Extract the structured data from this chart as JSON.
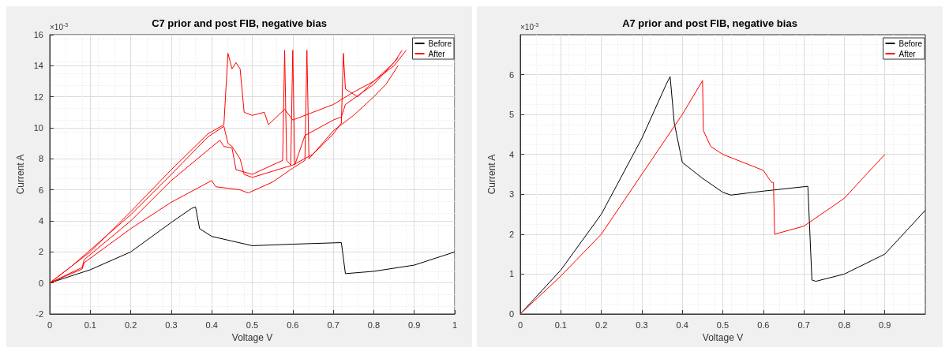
{
  "chart_data": [
    {
      "type": "line",
      "title": "C7 prior and post FIB, negative bias",
      "xlabel": "Voltage V",
      "ylabel": "Current A",
      "annotations": [
        "×10$^{-3}$"
      ],
      "xlim": [
        0,
        1
      ],
      "xticks": [
        0,
        0.1,
        0.2,
        0.3,
        0.4,
        0.5,
        0.6,
        0.7,
        0.8,
        0.9,
        1
      ],
      "ylim": [
        -2,
        16
      ],
      "yticks": [
        -2,
        0,
        2,
        4,
        6,
        8,
        10,
        12,
        14,
        16
      ],
      "grid": true,
      "legend": "top right",
      "series": [
        {
          "name": "Before",
          "color": "#000000",
          "x": [
            0,
            0.1,
            0.2,
            0.3,
            0.35,
            0.36,
            0.37,
            0.4,
            0.45,
            0.5,
            0.6,
            0.72,
            0.73,
            0.8,
            0.9,
            1
          ],
          "values": [
            0,
            0.85,
            2.0,
            3.9,
            4.8,
            4.9,
            3.5,
            3.0,
            2.7,
            2.4,
            2.5,
            2.6,
            0.6,
            0.75,
            1.15,
            2.0
          ]
        },
        {
          "name": "After",
          "color": "#ff0000",
          "x": [
            0,
            0.055,
            0.1,
            0.2,
            0.3,
            0.39,
            0.43,
            0.44,
            0.45,
            0.46,
            0.47,
            0.48,
            0.5,
            0.53,
            0.54,
            0.58,
            0.6,
            0.65,
            0.7,
            0.75,
            0.8,
            0.85,
            0.88
          ],
          "values": [
            0,
            1.1,
            2.0,
            4.6,
            7.3,
            9.6,
            10.2,
            14.8,
            13.8,
            14.2,
            13.8,
            11.0,
            10.8,
            11.0,
            10.2,
            11.2,
            10.5,
            11.0,
            11.5,
            12.3,
            13.0,
            14.0,
            15.0
          ]
        },
        {
          "color": "#ff0000",
          "x": [
            0,
            0.055,
            0.2,
            0.3,
            0.39,
            0.43,
            0.44,
            0.45,
            0.47,
            0.48,
            0.5,
            0.55,
            0.6,
            0.65,
            0.7,
            0.72,
            0.725,
            0.73,
            0.76,
            0.8,
            0.85,
            0.87
          ],
          "values": [
            0,
            1.1,
            4.4,
            7.0,
            9.4,
            10.1,
            9.0,
            8.8,
            8.0,
            7.0,
            6.8,
            7.2,
            7.6,
            8.3,
            9.6,
            10.3,
            14.8,
            12.5,
            12.0,
            13.0,
            14.2,
            15.0
          ]
        },
        {
          "color": "#ff0000",
          "x": [
            0,
            0.08,
            0.085,
            0.2,
            0.3,
            0.42,
            0.43,
            0.45,
            0.46,
            0.5,
            0.575,
            0.58,
            0.585,
            0.595,
            0.6,
            0.605,
            0.63,
            0.7,
            0.72,
            0.73,
            0.8,
            0.86
          ],
          "values": [
            0,
            1.0,
            1.5,
            4.0,
            6.6,
            9.2,
            8.8,
            8.7,
            7.3,
            7.0,
            7.9,
            15.0,
            7.9,
            7.6,
            15.0,
            7.6,
            9.5,
            10.5,
            10.7,
            11.5,
            12.8,
            14.5
          ]
        },
        {
          "color": "#ff0000",
          "x": [
            0,
            0.08,
            0.085,
            0.2,
            0.3,
            0.4,
            0.41,
            0.47,
            0.49,
            0.55,
            0.6,
            0.63,
            0.635,
            0.64,
            0.65,
            0.7,
            0.75,
            0.8,
            0.83,
            0.86
          ],
          "values": [
            0,
            0.9,
            1.3,
            3.5,
            5.2,
            6.6,
            6.2,
            6.0,
            5.8,
            6.5,
            7.4,
            7.9,
            15.0,
            8.0,
            8.3,
            9.8,
            10.8,
            12.0,
            12.8,
            14.0
          ]
        }
      ]
    },
    {
      "type": "line",
      "title": "A7 prior and post FIB, negative bias",
      "xlabel": "Voltage V",
      "ylabel": "Current A",
      "annotations": [
        "×10$^{-3}$"
      ],
      "xlim": [
        0,
        1
      ],
      "xticks": [
        0,
        0.1,
        0.2,
        0.3,
        0.4,
        0.5,
        0.6,
        0.7,
        0.8,
        0.9
      ],
      "ylim": [
        0,
        7
      ],
      "yticks": [
        0,
        1,
        2,
        3,
        4,
        5,
        6
      ],
      "grid": true,
      "legend": "top right",
      "series": [
        {
          "name": "Before",
          "color": "#000000",
          "x": [
            0,
            0.1,
            0.2,
            0.3,
            0.36,
            0.37,
            0.38,
            0.4,
            0.45,
            0.5,
            0.52,
            0.6,
            0.71,
            0.72,
            0.73,
            0.8,
            0.9,
            1
          ],
          "values": [
            0,
            1.1,
            2.5,
            4.4,
            5.75,
            5.95,
            4.8,
            3.8,
            3.4,
            3.05,
            2.98,
            3.08,
            3.2,
            0.85,
            0.82,
            1.0,
            1.5,
            2.6
          ]
        },
        {
          "name": "After",
          "color": "#ff0000",
          "x": [
            0,
            0.1,
            0.2,
            0.3,
            0.4,
            0.45,
            0.452,
            0.47,
            0.5,
            0.55,
            0.6,
            0.62,
            0.625,
            0.628,
            0.7,
            0.8,
            0.9
          ],
          "values": [
            0,
            0.95,
            2.0,
            3.5,
            5.0,
            5.85,
            4.6,
            4.2,
            4.0,
            3.8,
            3.6,
            3.3,
            3.3,
            2.0,
            2.2,
            2.9,
            4.0
          ]
        }
      ]
    }
  ]
}
